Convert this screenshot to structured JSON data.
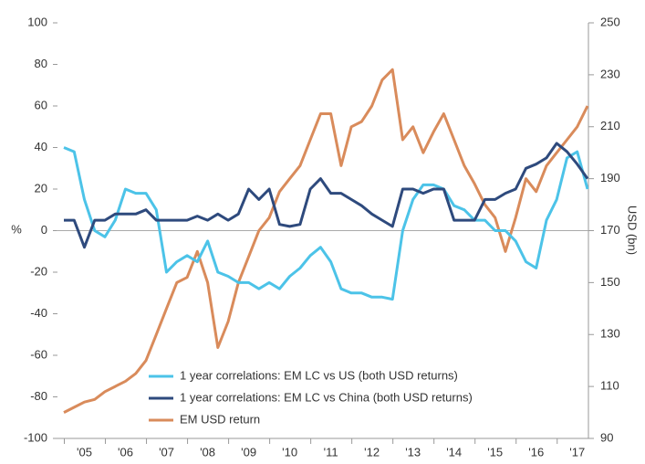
{
  "chart_data": {
    "type": "line",
    "categories": [
      null,
      null,
      "'05",
      null,
      null,
      null,
      "'06",
      null,
      null,
      null,
      "'07",
      null,
      null,
      null,
      "'08",
      null,
      null,
      null,
      "'09",
      null,
      null,
      null,
      "'10",
      null,
      null,
      null,
      "'11",
      null,
      null,
      null,
      "'12",
      null,
      null,
      null,
      "'13",
      null,
      null,
      null,
      "'14",
      null,
      null,
      null,
      "'15",
      null,
      null,
      null,
      "'16",
      null,
      null,
      null,
      "'17",
      null
    ],
    "series": [
      {
        "name": "1 year correlations: EM LC vs US (both USD returns)",
        "color": "#4cc3e8",
        "values": [
          40,
          38,
          15,
          0,
          -3,
          5,
          20,
          18,
          18,
          10,
          -20,
          -15,
          -12,
          -15,
          -5,
          -20,
          -22,
          -25,
          -25,
          -28,
          -25,
          -28,
          -22,
          -18,
          -12,
          -8,
          -15,
          -28,
          -30,
          -30,
          -32,
          -32,
          -33,
          0,
          15,
          22,
          22,
          20,
          12,
          10,
          5,
          5,
          0,
          0,
          -5,
          -15,
          -18,
          5,
          15,
          35,
          38,
          20
        ]
      },
      {
        "name": "1 year correlations: EM LC vs China (both USD returns)",
        "color": "#2e4a7d",
        "values": [
          5,
          5,
          -8,
          5,
          5,
          8,
          8,
          8,
          10,
          5,
          5,
          5,
          5,
          7,
          5,
          8,
          5,
          8,
          20,
          15,
          20,
          3,
          2,
          3,
          20,
          25,
          18,
          18,
          15,
          12,
          8,
          5,
          2,
          20,
          20,
          18,
          20,
          20,
          5,
          5,
          5,
          15,
          15,
          18,
          20,
          30,
          32,
          35,
          42,
          38,
          32,
          25
        ]
      },
      {
        "name": "EM USD return",
        "color": "#d98b5b",
        "axis": "y2",
        "values": [
          100,
          102,
          104,
          105,
          108,
          110,
          112,
          115,
          120,
          130,
          140,
          150,
          152,
          162,
          150,
          125,
          135,
          150,
          160,
          170,
          175,
          185,
          190,
          195,
          205,
          215,
          215,
          195,
          210,
          212,
          218,
          228,
          232,
          205,
          210,
          200,
          208,
          215,
          205,
          195,
          188,
          180,
          175,
          162,
          175,
          190,
          185,
          195,
          200,
          205,
          210,
          218
        ]
      }
    ],
    "ylabel": "%",
    "y2label": "USD (bn)",
    "ylim": [
      -100,
      100
    ],
    "yticks": [
      -100,
      -80,
      -60,
      -40,
      -20,
      0,
      20,
      40,
      60,
      80,
      100
    ],
    "y2lim": [
      90,
      250
    ],
    "y2ticks": [
      90,
      110,
      130,
      150,
      170,
      190,
      210,
      230,
      250
    ]
  }
}
